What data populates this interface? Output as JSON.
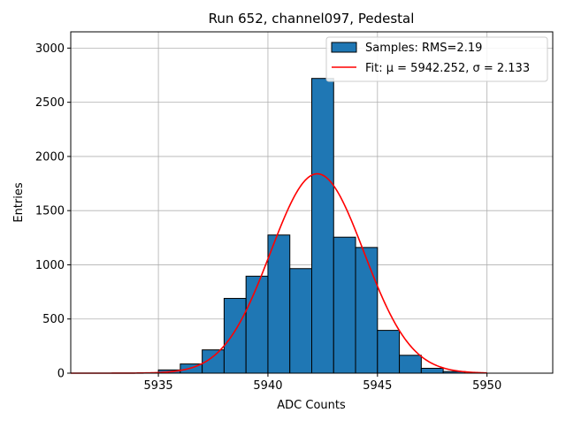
{
  "chart_data": {
    "type": "bar",
    "title": "Run 652, channel097, Pedestal",
    "xlabel": "ADC Counts",
    "ylabel": "Entries",
    "xlim": [
      5931,
      5953
    ],
    "ylim": [
      0,
      3150
    ],
    "grid": true,
    "legend_position": "top-right",
    "x_ticks": [
      5935,
      5940,
      5945,
      5950
    ],
    "x_tick_labels": [
      "5935",
      "5940",
      "5945",
      "5950"
    ],
    "y_ticks": [
      0,
      500,
      1000,
      1500,
      2000,
      2500,
      3000
    ],
    "y_tick_labels": [
      "0",
      "500",
      "1000",
      "1500",
      "2000",
      "2500",
      "3000"
    ],
    "histogram": {
      "name": "Samples: RMS=2.19",
      "color": "#1f77b4",
      "edge_color": "#000000",
      "bin_width": 1,
      "bin_starts": [
        5935,
        5936,
        5937,
        5938,
        5939,
        5940,
        5941,
        5942,
        5943,
        5944,
        5945,
        5946,
        5947,
        5948
      ],
      "counts": [
        30,
        85,
        215,
        690,
        895,
        1275,
        965,
        2720,
        1255,
        1160,
        395,
        165,
        45,
        15
      ]
    },
    "fit": {
      "name": "Fit: μ = 5942.252, σ = 2.133",
      "color": "#ff0000",
      "mu": 5942.252,
      "sigma": 2.133,
      "amplitude": 1840,
      "x_range": [
        5931,
        5950
      ]
    }
  }
}
